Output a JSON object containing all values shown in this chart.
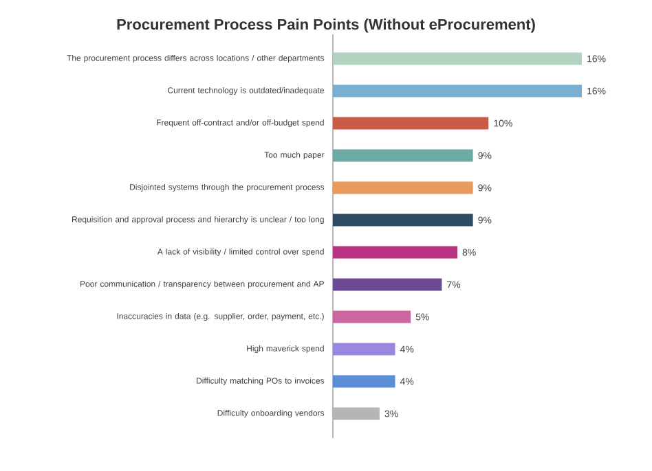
{
  "chart_data": {
    "type": "bar",
    "orientation": "horizontal",
    "title": "Procurement Process Pain Points (Without eProcurement)",
    "categories": [
      "The procurement process differs across locations / other departments",
      "Current technology is outdated/inadequate",
      "Frequent off-contract and/or off-budget spend",
      "Too much paper",
      "Disjointed systems through the procurement process",
      "Requisition and approval process and hierarchy is unclear / too long",
      "A lack of visibility / limited control over spend",
      "Poor communication / transparency between procurement and AP",
      "Inaccuracies in data (e.g. supplier, order, payment, etc.)",
      "High maverick spend",
      "Difficulty matching POs to invoices",
      "Difficulty onboarding vendors"
    ],
    "values": [
      16,
      16,
      10,
      9,
      9,
      9,
      8,
      7,
      5,
      4,
      4,
      3
    ],
    "value_labels": [
      "16%",
      "16%",
      "10%",
      "9%",
      "9%",
      "9%",
      "8%",
      "7%",
      "5%",
      "4%",
      "4%",
      "3%"
    ],
    "colors": [
      "#b3d4c0",
      "#79afd2",
      "#c95a45",
      "#6fa9a3",
      "#e99a5a",
      "#2f4a63",
      "#b83380",
      "#6d4a94",
      "#cc66a0",
      "#9a88e0",
      "#5b8ed6",
      "#b5b5b5"
    ],
    "data_labels": true
  }
}
